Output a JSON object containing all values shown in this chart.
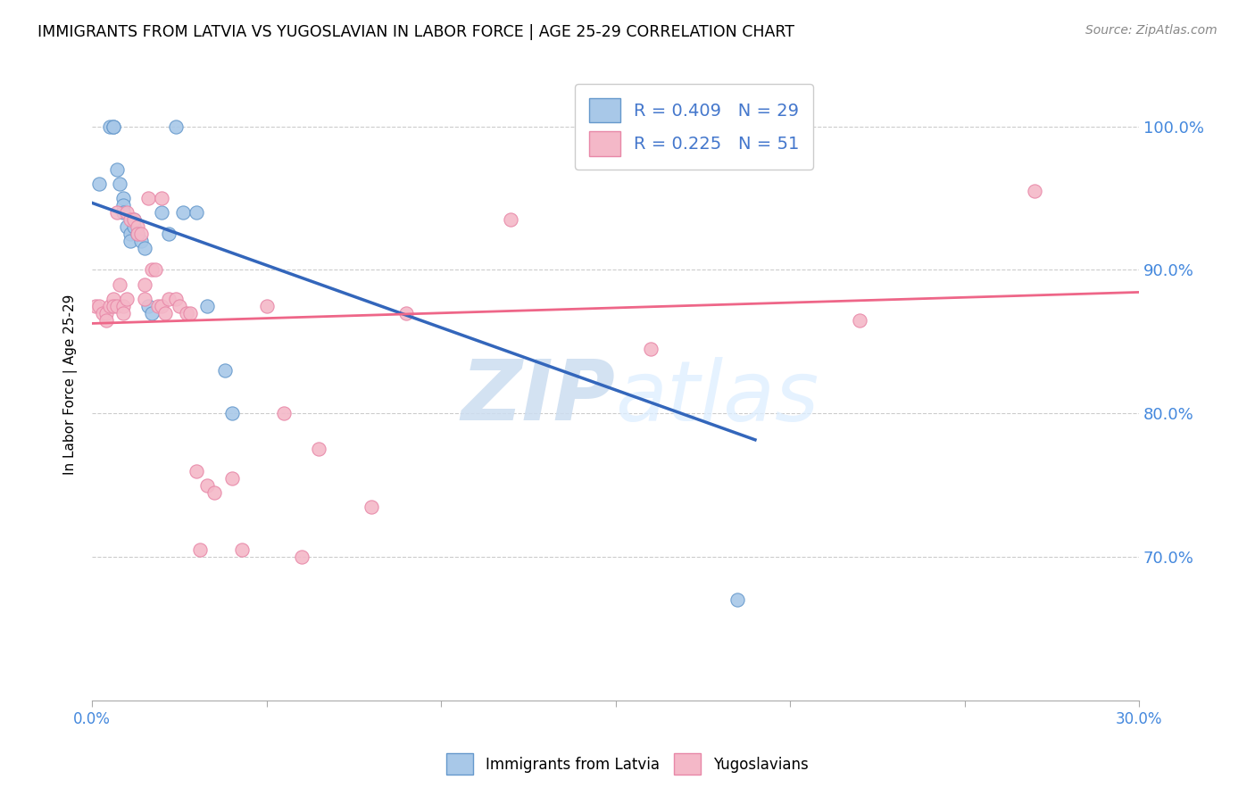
{
  "title": "IMMIGRANTS FROM LATVIA VS YUGOSLAVIAN IN LABOR FORCE | AGE 25-29 CORRELATION CHART",
  "source": "Source: ZipAtlas.com",
  "ylabel": "In Labor Force | Age 25-29",
  "xlim": [
    0.0,
    0.3
  ],
  "ylim": [
    0.6,
    1.04
  ],
  "yticks": [
    0.7,
    0.8,
    0.9,
    1.0
  ],
  "ytick_labels": [
    "70.0%",
    "80.0%",
    "90.0%",
    "100.0%"
  ],
  "xticks": [
    0.0,
    0.05,
    0.1,
    0.15,
    0.2,
    0.25,
    0.3
  ],
  "xtick_labels": [
    "0.0%",
    "",
    "",
    "",
    "",
    "",
    "30.0%"
  ],
  "watermark_zip": "ZIP",
  "watermark_atlas": "atlas",
  "latvia_color": "#a8c8e8",
  "yugoslavian_color": "#f4b8c8",
  "latvia_edge_color": "#6699cc",
  "yugoslavian_edge_color": "#e888a8",
  "latvia_line_color": "#3366bb",
  "yugoslavian_line_color": "#ee6688",
  "latvia_r": 0.409,
  "yugoslavian_r": 0.225,
  "latvia_n": 29,
  "yugoslavian_n": 51,
  "legend_label_color": "#4477cc",
  "tick_color": "#4488dd",
  "latvia_x": [
    0.002,
    0.005,
    0.006,
    0.006,
    0.007,
    0.008,
    0.009,
    0.009,
    0.009,
    0.01,
    0.011,
    0.011,
    0.012,
    0.012,
    0.013,
    0.014,
    0.015,
    0.016,
    0.017,
    0.02,
    0.022,
    0.024,
    0.026,
    0.03,
    0.033,
    0.038,
    0.04,
    0.155,
    0.185
  ],
  "latvia_y": [
    0.96,
    1.0,
    1.0,
    1.0,
    0.97,
    0.96,
    0.95,
    0.945,
    0.94,
    0.93,
    0.925,
    0.92,
    0.935,
    0.93,
    0.925,
    0.92,
    0.915,
    0.875,
    0.87,
    0.94,
    0.925,
    1.0,
    0.94,
    0.94,
    0.875,
    0.83,
    0.8,
    1.0,
    0.67
  ],
  "yugoslavian_x": [
    0.001,
    0.002,
    0.003,
    0.004,
    0.004,
    0.005,
    0.006,
    0.006,
    0.007,
    0.007,
    0.008,
    0.009,
    0.009,
    0.01,
    0.01,
    0.011,
    0.012,
    0.013,
    0.013,
    0.014,
    0.015,
    0.015,
    0.016,
    0.017,
    0.018,
    0.019,
    0.02,
    0.02,
    0.021,
    0.022,
    0.024,
    0.025,
    0.027,
    0.028,
    0.03,
    0.031,
    0.033,
    0.035,
    0.04,
    0.043,
    0.05,
    0.055,
    0.06,
    0.065,
    0.08,
    0.09,
    0.12,
    0.16,
    0.2,
    0.22,
    0.27
  ],
  "yugoslavian_y": [
    0.875,
    0.875,
    0.87,
    0.87,
    0.865,
    0.875,
    0.88,
    0.875,
    0.94,
    0.875,
    0.89,
    0.875,
    0.87,
    0.94,
    0.88,
    0.935,
    0.935,
    0.93,
    0.925,
    0.925,
    0.89,
    0.88,
    0.95,
    0.9,
    0.9,
    0.875,
    0.875,
    0.95,
    0.87,
    0.88,
    0.88,
    0.875,
    0.87,
    0.87,
    0.76,
    0.705,
    0.75,
    0.745,
    0.755,
    0.705,
    0.875,
    0.8,
    0.7,
    0.775,
    0.735,
    0.87,
    0.935,
    0.845,
    1.0,
    0.865,
    0.955
  ]
}
